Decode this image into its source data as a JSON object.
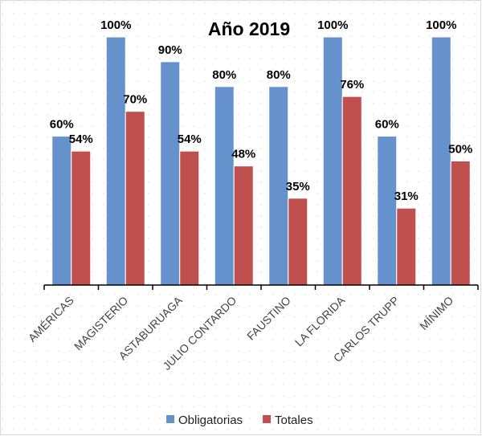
{
  "chart_data": {
    "type": "bar",
    "title": "Año 2019",
    "categories": [
      "AMÉRICAS",
      "MAGISTERIO",
      "ASTABURUAGA",
      "JULIO CONTARDO",
      "FAUSTINO",
      "LA FLORIDA",
      "CARLOS TRUPP",
      "MÍNIMO"
    ],
    "series": [
      {
        "name": "Obligatorias",
        "color": "#6592cd",
        "values": [
          60,
          100,
          90,
          80,
          80,
          100,
          60,
          100
        ],
        "value_labels": [
          "60%",
          "100%",
          "90%",
          "80%",
          "80%",
          "100%",
          "60%",
          "100%"
        ]
      },
      {
        "name": "Totales",
        "color": "#c0504d",
        "values": [
          54,
          70,
          54,
          48,
          35,
          76,
          31,
          50
        ],
        "value_labels": [
          "54%",
          "70%",
          "54%",
          "48%",
          "35%",
          "76%",
          "31%",
          "50%"
        ]
      }
    ],
    "ylim": [
      0,
      100
    ]
  }
}
